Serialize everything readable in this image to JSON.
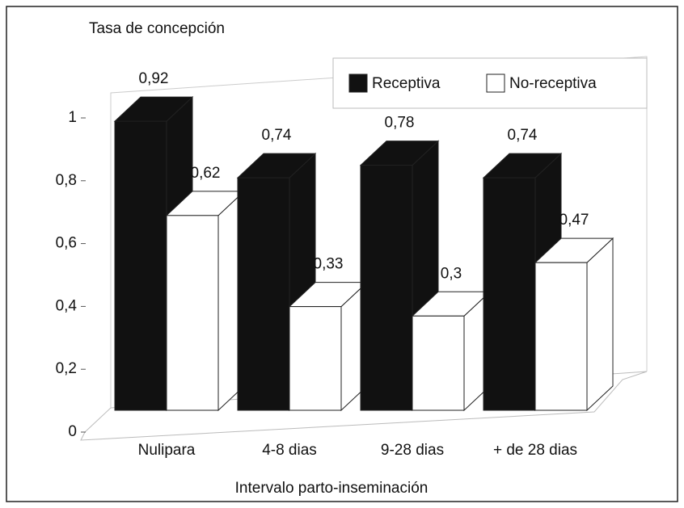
{
  "chart_data": {
    "type": "bar3d",
    "y_label": "Tasa de concepción",
    "x_label": "Intervalo parto-inseminación",
    "categories": [
      "Nulipara",
      "4-8 dias",
      "9-28 dias",
      "+ de 28 dias"
    ],
    "series": [
      {
        "name": "Receptiva",
        "color": "#111111",
        "values": [
          0.92,
          0.74,
          0.78,
          0.74
        ],
        "value_labels": [
          "0,92",
          "0,74",
          "0,78",
          "0,74"
        ]
      },
      {
        "name": "No-receptiva",
        "color": "#ffffff",
        "values": [
          0.62,
          0.33,
          0.3,
          0.47
        ],
        "value_labels": [
          "0,62",
          "0,33",
          "0,3",
          "0,47"
        ]
      }
    ],
    "ylim": [
      0,
      1
    ],
    "yticks": [
      0,
      {
        "value": 0.2,
        "label": "0,2"
      },
      {
        "value": 0.4,
        "label": "0,4"
      },
      {
        "value": 0.6,
        "label": "0,6"
      },
      {
        "value": 0.8,
        "label": "0,8"
      },
      1
    ],
    "legend": "top-right"
  }
}
